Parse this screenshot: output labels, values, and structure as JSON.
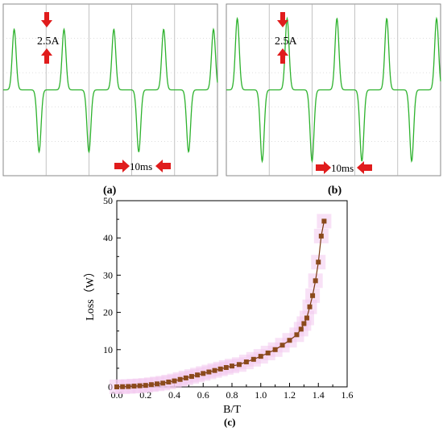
{
  "colors": {
    "waveform": "#2db22d",
    "arrow": "#e01c1c",
    "curve": "#7a3a10",
    "marker": "#8b4a1c",
    "halo": "#f3c8ef",
    "scope_border": "#8a8a8a",
    "scope_grid": "#aaaaaa"
  },
  "panel_a": {
    "label": "(a)",
    "amplitude_label": "2.5A",
    "time_label": "10ms",
    "cycles": 4.3,
    "pos_peak": 0.84,
    "neg_peak": 0.86
  },
  "panel_b": {
    "label": "(b)",
    "amplitude_label": "2.5A",
    "time_label": "10ms",
    "cycles": 4.3,
    "pos_peak": 0.99,
    "neg_peak": 0.99
  },
  "panel_c": {
    "label": "(c)"
  },
  "chart_data": [
    {
      "type": "line",
      "panel": "(c)",
      "xlabel": "B/T",
      "ylabel": "Loss（W）",
      "xlim": [
        0.0,
        1.6
      ],
      "ylim": [
        0,
        50
      ],
      "xticks": [
        "0.0",
        "0.2",
        "0.4",
        "0.6",
        "0.8",
        "1.0",
        "1.2",
        "1.4",
        "1.6"
      ],
      "yticks": [
        "0",
        "10",
        "20",
        "30",
        "40",
        "50"
      ],
      "x": [
        0.0,
        0.04,
        0.08,
        0.12,
        0.16,
        0.2,
        0.24,
        0.28,
        0.32,
        0.36,
        0.4,
        0.44,
        0.48,
        0.52,
        0.56,
        0.6,
        0.64,
        0.68,
        0.72,
        0.76,
        0.8,
        0.85,
        0.9,
        0.95,
        1.0,
        1.05,
        1.1,
        1.15,
        1.2,
        1.25,
        1.28,
        1.3,
        1.32,
        1.34,
        1.36,
        1.38,
        1.4,
        1.42,
        1.44
      ],
      "y": [
        0.0,
        0.05,
        0.1,
        0.2,
        0.3,
        0.4,
        0.6,
        0.8,
        1.0,
        1.3,
        1.6,
        2.0,
        2.4,
        2.8,
        3.2,
        3.6,
        4.0,
        4.4,
        4.8,
        5.2,
        5.6,
        6.0,
        6.7,
        7.4,
        8.2,
        9.1,
        10.0,
        11.2,
        12.5,
        14.0,
        15.5,
        17.0,
        18.5,
        21.5,
        24.5,
        28.5,
        33.5,
        40.5,
        44.5
      ]
    }
  ]
}
